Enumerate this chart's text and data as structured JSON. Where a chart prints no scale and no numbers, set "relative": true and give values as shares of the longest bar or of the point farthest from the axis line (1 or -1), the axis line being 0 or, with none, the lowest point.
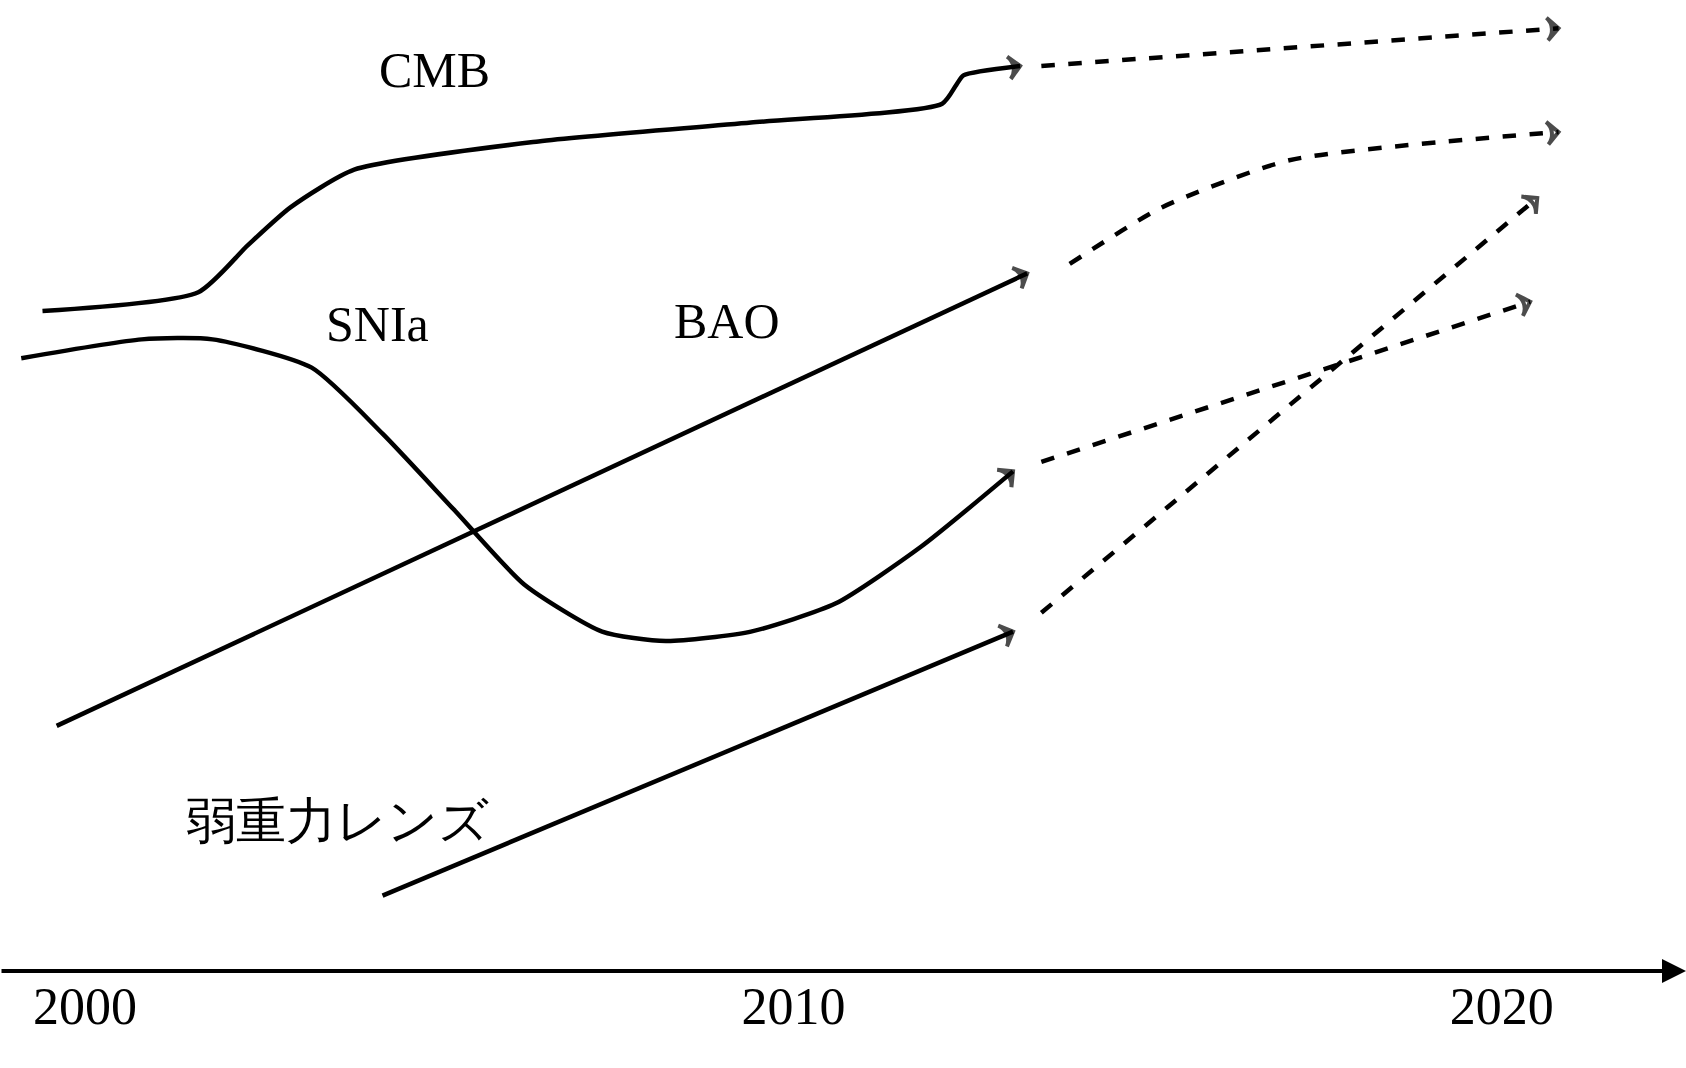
{
  "chart_data": {
    "type": "line",
    "relative": true,
    "xlim": [
      1998.8,
      2022.6
    ],
    "xticks": [
      2000,
      2010,
      2020
    ],
    "legend": false,
    "series": [
      {
        "name": "CMB",
        "color": "#000000",
        "line_style": "solid",
        "x": [
          1999.4,
          2001.6,
          2002.3,
          2002.9,
          2003.8,
          2006.4,
          2009.4,
          2012.1,
          2012.3,
          2012.4,
          2013.2
        ],
        "values": [
          0.7,
          0.72,
          0.77,
          0.81,
          0.85,
          0.88,
          0.9,
          0.92,
          0.94,
          0.95,
          0.96
        ]
      },
      {
        "color": "#000000",
        "line_style": "dashed",
        "x": [
          2013.5,
          2020.8
        ],
        "values": [
          0.96,
          1.0
        ]
      },
      {
        "name": "SNIa",
        "color": "#000000",
        "line_style": "solid",
        "x": [
          1999.1,
          2000.8,
          2001.8,
          2003.2,
          2004.2,
          2005.2,
          2006.2,
          2007.3,
          2008.2,
          2009.4,
          2010.6,
          2011.8,
          2013.1
        ],
        "values": [
          0.65,
          0.67,
          0.67,
          0.64,
          0.57,
          0.49,
          0.41,
          0.36,
          0.35,
          0.36,
          0.39,
          0.45,
          0.53
        ]
      },
      {
        "color": "#000000",
        "line_style": "dashed",
        "x": [
          2013.5,
          2020.4
        ],
        "values": [
          0.54,
          0.71
        ]
      },
      {
        "name": "BAO",
        "color": "#000000",
        "line_style": "solid",
        "x": [
          1999.6,
          2013.3
        ],
        "values": [
          0.26,
          0.74
        ]
      },
      {
        "color": "#000000",
        "line_style": "dashed",
        "x": [
          2013.9,
          2015.2,
          2017.0,
          2020.8
        ],
        "values": [
          0.75,
          0.81,
          0.86,
          0.89
        ]
      },
      {
        "name": "弱重力レンズ",
        "color": "#000000",
        "line_style": "solid",
        "x": [
          2004.2,
          2013.1
        ],
        "values": [
          0.08,
          0.36
        ]
      },
      {
        "color": "#000000",
        "line_style": "dashed",
        "x": [
          2013.5,
          2020.5
        ],
        "values": [
          0.38,
          0.82
        ]
      }
    ]
  }
}
